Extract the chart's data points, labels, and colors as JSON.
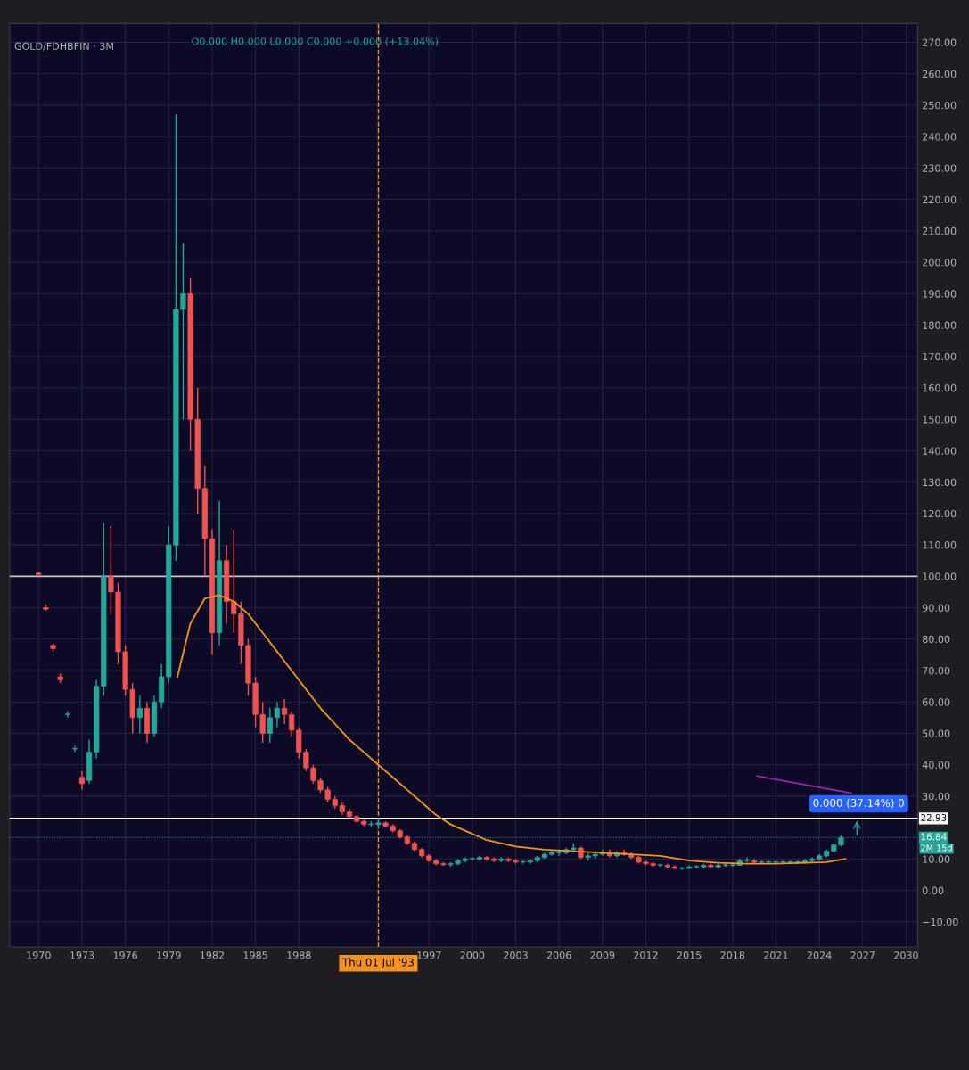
{
  "chart_data": {
    "type": "candlestick",
    "title": "GOLD/FDHBFIN · 3M",
    "annotations": [
      "O0.000 H0.000 L0.000 C0.000 +0.000 (+13.04%)",
      "0.000 (37.14%) 0",
      "2M 15d"
    ],
    "x": [
      1970.0,
      1970.5,
      1971.0,
      1971.5,
      1972.0,
      1972.5,
      1973.0,
      1973.5,
      1974.0,
      1974.5,
      1975.0,
      1975.5,
      1976.0,
      1976.5,
      1977.0,
      1977.5,
      1978.0,
      1978.5,
      1979.0,
      1979.5,
      1980.0,
      1980.5,
      1981.0,
      1981.5,
      1982.0,
      1982.5,
      1983.0,
      1983.5,
      1984.0,
      1984.5,
      1985.0,
      1985.5,
      1986.0,
      1986.5,
      1987.0,
      1987.5,
      1988.0,
      1988.5,
      1989.0,
      1989.5,
      1990.0,
      1990.5,
      1991.0,
      1991.5,
      1992.0,
      1992.5,
      1993.0,
      1993.5,
      1994.0,
      1994.5,
      1995.0,
      1995.5,
      1996.0,
      1996.5,
      1997.0,
      1997.5,
      1998.0,
      1998.5,
      1999.0,
      1999.5,
      2000.0,
      2000.5,
      2001.0,
      2001.5,
      2002.0,
      2002.5,
      2003.0,
      2003.5,
      2004.0,
      2004.5,
      2005.0,
      2005.5,
      2006.0,
      2006.5,
      2007.0,
      2007.5,
      2008.0,
      2008.5,
      2009.0,
      2009.5,
      2010.0,
      2010.5,
      2011.0,
      2011.5,
      2012.0,
      2012.5,
      2013.0,
      2013.5,
      2014.0,
      2014.5,
      2015.0,
      2015.5,
      2016.0,
      2016.5,
      2017.0,
      2017.5,
      2018.0,
      2018.5,
      2019.0,
      2019.5,
      2020.0,
      2020.5,
      2021.0,
      2021.5,
      2022.0,
      2022.5,
      2023.0,
      2023.5,
      2024.0,
      2024.5,
      2025.0,
      2025.5
    ],
    "ohlc": [
      [
        101,
        101.5,
        100,
        100.5
      ],
      [
        90,
        91,
        89,
        89.5
      ],
      [
        78,
        78.5,
        76,
        77
      ],
      [
        68,
        69,
        66,
        67
      ],
      [
        56,
        57,
        55,
        56
      ],
      [
        45,
        46,
        44,
        45
      ],
      [
        36,
        38,
        32,
        34
      ],
      [
        35,
        48,
        34,
        44
      ],
      [
        44,
        67,
        42,
        65
      ],
      [
        65,
        117,
        62,
        100
      ],
      [
        100,
        116,
        88,
        95
      ],
      [
        95,
        98,
        72,
        76
      ],
      [
        76,
        78,
        62,
        64
      ],
      [
        64,
        66,
        50,
        55
      ],
      [
        55,
        62,
        50,
        58
      ],
      [
        58,
        60,
        47,
        50
      ],
      [
        50,
        62,
        49,
        60
      ],
      [
        60,
        72,
        58,
        68
      ],
      [
        68,
        116,
        66,
        110
      ],
      [
        110,
        247,
        105,
        185
      ],
      [
        185,
        206,
        150,
        190
      ],
      [
        190,
        195,
        140,
        150
      ],
      [
        150,
        160,
        120,
        128
      ],
      [
        128,
        135,
        100,
        112
      ],
      [
        112,
        115,
        75,
        82
      ],
      [
        82,
        124,
        78,
        105
      ],
      [
        105,
        110,
        85,
        92
      ],
      [
        92,
        115,
        82,
        88
      ],
      [
        88,
        92,
        72,
        78
      ],
      [
        78,
        80,
        62,
        66
      ],
      [
        66,
        68,
        52,
        56
      ],
      [
        56,
        60,
        47,
        50
      ],
      [
        50,
        58,
        47,
        55
      ],
      [
        55,
        60,
        52,
        58
      ],
      [
        58,
        61,
        53,
        56
      ],
      [
        56,
        57,
        49,
        51
      ],
      [
        51,
        52,
        42,
        44
      ],
      [
        44,
        45,
        38,
        39
      ],
      [
        39,
        40,
        34,
        35
      ],
      [
        35,
        36,
        31,
        32
      ],
      [
        32,
        33,
        28,
        29
      ],
      [
        29,
        30,
        26,
        27
      ],
      [
        27,
        28,
        24,
        25
      ],
      [
        25,
        26,
        23,
        23.5
      ],
      [
        23.5,
        24,
        21.5,
        22
      ],
      [
        22,
        22.5,
        20.5,
        21
      ],
      [
        21,
        22,
        20,
        21
      ],
      [
        21,
        23,
        20,
        21.5
      ],
      [
        21.5,
        22,
        20,
        20.5
      ],
      [
        20.5,
        21,
        18.5,
        19
      ],
      [
        19,
        19.5,
        16.5,
        17
      ],
      [
        17,
        17.5,
        14.5,
        15
      ],
      [
        15,
        15.5,
        12.5,
        13
      ],
      [
        13,
        13.5,
        10.5,
        11
      ],
      [
        11,
        11.5,
        9,
        9.5
      ],
      [
        9.5,
        10,
        8,
        8.5
      ],
      [
        8.5,
        9,
        7.8,
        8.2
      ],
      [
        8.2,
        9,
        7.5,
        8.5
      ],
      [
        8.5,
        10,
        8,
        9.5
      ],
      [
        9.5,
        10.5,
        9,
        10
      ],
      [
        10,
        10.5,
        9.5,
        10
      ],
      [
        10,
        11,
        9.5,
        10.5
      ],
      [
        10.5,
        11,
        9.5,
        10
      ],
      [
        10,
        10.5,
        9,
        9.5
      ],
      [
        9.5,
        10.5,
        9,
        10
      ],
      [
        10,
        10.5,
        9,
        9.5
      ],
      [
        9.5,
        10,
        8.5,
        9
      ],
      [
        9,
        9.5,
        8.5,
        9
      ],
      [
        9,
        10,
        8.5,
        9.5
      ],
      [
        9.5,
        11,
        9,
        10.5
      ],
      [
        10.5,
        12,
        10,
        11.5
      ],
      [
        11.5,
        12.5,
        11,
        12
      ],
      [
        12,
        13,
        11,
        12
      ],
      [
        12,
        13.5,
        11.5,
        13
      ],
      [
        13,
        15,
        12,
        13.5
      ],
      [
        13.5,
        14,
        10,
        10.5
      ],
      [
        10.5,
        12,
        9.5,
        11
      ],
      [
        11,
        12.5,
        10,
        11.5
      ],
      [
        11.5,
        13,
        11,
        12
      ],
      [
        12,
        13,
        10.5,
        11
      ],
      [
        11,
        12.5,
        10.5,
        12
      ],
      [
        12,
        13,
        11,
        11.5
      ],
      [
        11.5,
        12,
        10,
        10.5
      ],
      [
        10.5,
        11,
        8.5,
        9
      ],
      [
        9,
        9.5,
        8,
        8.5
      ],
      [
        8.5,
        9,
        7.5,
        8
      ],
      [
        8,
        8.5,
        7.5,
        8
      ],
      [
        8,
        8.5,
        7,
        7.5
      ],
      [
        7.5,
        8,
        6.8,
        7
      ],
      [
        7,
        7.5,
        6.5,
        7
      ],
      [
        7,
        8,
        6.8,
        7.5
      ],
      [
        7.5,
        8,
        7,
        7.5
      ],
      [
        7.5,
        8.5,
        7,
        8
      ],
      [
        8,
        8.5,
        7.2,
        7.5
      ],
      [
        7.5,
        8.5,
        7,
        8
      ],
      [
        8,
        8.5,
        7.5,
        8
      ],
      [
        8,
        8.5,
        7.5,
        8
      ],
      [
        8,
        10,
        7.8,
        9.5
      ],
      [
        9.5,
        10.5,
        9,
        9.5
      ],
      [
        9.5,
        10,
        8.5,
        9
      ],
      [
        9,
        9.5,
        8.5,
        9
      ],
      [
        9,
        9.5,
        8.5,
        9
      ],
      [
        9,
        9.5,
        8.5,
        9
      ],
      [
        9,
        9.5,
        8.5,
        9
      ],
      [
        9,
        9.5,
        8.5,
        9
      ],
      [
        9,
        9.5,
        8.5,
        9
      ],
      [
        9,
        10,
        8.5,
        9.5
      ],
      [
        9.5,
        10.5,
        9,
        10
      ],
      [
        10,
        11.5,
        9.5,
        11
      ],
      [
        11,
        13,
        10.5,
        12.5
      ],
      [
        12.5,
        15,
        12,
        14.5
      ],
      [
        14.5,
        17.5,
        14,
        16.84
      ]
    ],
    "series": [
      {
        "type": "line",
        "color": "#f7931a",
        "x": [
          1979.6,
          1980.5,
          1981.5,
          1982.5,
          1983.5,
          1984.5,
          1985.5,
          1986.5,
          1987.5,
          1988.5,
          1989.5,
          1990.5,
          1991.5,
          1992.5,
          1993.5,
          1994.5,
          1995.5,
          1996.5,
          1997.5,
          1998.5,
          1999.5,
          2001,
          2003,
          2005,
          2007,
          2009,
          2011,
          2013,
          2015,
          2017,
          2019,
          2021,
          2023,
          2024.5,
          2025.8
        ],
        "values": [
          68,
          85,
          93,
          94,
          92,
          88,
          82,
          76,
          70,
          64,
          58,
          53,
          48,
          44,
          40,
          36,
          32,
          28,
          24,
          21,
          19,
          16,
          14,
          13,
          12.5,
          12,
          11.5,
          11,
          9.5,
          8.8,
          8.5,
          8.5,
          8.8,
          9,
          10
        ]
      },
      {
        "type": "line",
        "color": "#9c27b0",
        "x": [
          2019.7,
          2026.2
        ],
        "values": [
          36.4,
          31
        ]
      }
    ],
    "ref_lines": [
      {
        "axis": "y",
        "value": 100,
        "label": null,
        "color": "#c8c8c8",
        "line_style": "solid"
      },
      {
        "axis": "y",
        "value": 22.93,
        "label": "22.93",
        "color": "#ffffff",
        "line_style": "solid"
      },
      {
        "axis": "y",
        "value": 16.84,
        "label": "16.84",
        "color": "#26a69a",
        "line_style": "dotted"
      },
      {
        "axis": "x",
        "value": 1993.5,
        "label": "Thu 01 Jul '93",
        "color": "#f7931a",
        "line_style": "dashed"
      }
    ],
    "xlim": [
      1968,
      2030.8
    ],
    "xticks": [
      1970,
      1973,
      1976,
      1979,
      1982,
      1985,
      1988,
      1997,
      2000,
      2003,
      2006,
      2009,
      2012,
      2015,
      2018,
      2021,
      2024,
      2027,
      2030
    ],
    "ylim": [
      -18,
      276
    ],
    "yticks": [
      {
        "value": -10,
        "label": "−10.00"
      },
      {
        "value": 0,
        "label": "0.00"
      },
      {
        "value": 10,
        "label": "10.00"
      },
      {
        "value": 30,
        "label": "30.00"
      },
      {
        "value": 40,
        "label": "40.00"
      },
      {
        "value": 50,
        "label": "50.00"
      },
      {
        "value": 60,
        "label": "60.00"
      },
      {
        "value": 70,
        "label": "70.00"
      },
      {
        "value": 80,
        "label": "80.00"
      },
      {
        "value": 90,
        "label": "90.00"
      },
      {
        "value": 100,
        "label": "100.00"
      },
      {
        "value": 110,
        "label": "110.00"
      },
      {
        "value": 120,
        "label": "120.00"
      },
      {
        "value": 130,
        "label": "130.00"
      },
      {
        "value": 140,
        "label": "140.00"
      },
      {
        "value": 150,
        "label": "150.00"
      },
      {
        "value": 160,
        "label": "160.00"
      },
      {
        "value": 170,
        "label": "170.00"
      },
      {
        "value": 180,
        "label": "180.00"
      },
      {
        "value": 190,
        "label": "190.00"
      },
      {
        "value": 200,
        "label": "200.00"
      },
      {
        "value": 210,
        "label": "210.00"
      },
      {
        "value": 220,
        "label": "220.00"
      },
      {
        "value": 230,
        "label": "230.00"
      },
      {
        "value": 240,
        "label": "240.00"
      },
      {
        "value": 250,
        "label": "250.00"
      },
      {
        "value": 260,
        "label": "260.00"
      },
      {
        "value": 270,
        "label": "270.00"
      }
    ],
    "grid": true
  }
}
